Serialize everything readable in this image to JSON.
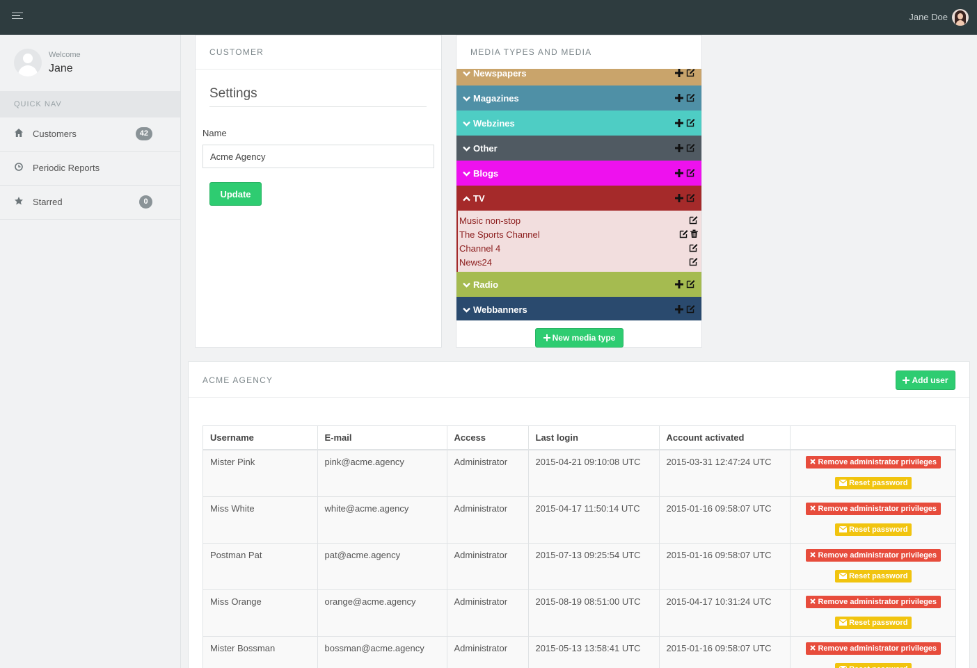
{
  "header": {
    "user_name": "Jane Doe"
  },
  "sidebar": {
    "welcome_label": "Welcome",
    "welcome_name": "Jane",
    "section_label": "QUICK NAV",
    "items": [
      {
        "label": "Customers",
        "badge": "42",
        "icon": "home-icon"
      },
      {
        "label": "Periodic Reports",
        "badge": "",
        "icon": "clock-icon"
      },
      {
        "label": "Starred",
        "badge": "0",
        "icon": "star-icon"
      }
    ]
  },
  "customer_panel": {
    "title": "CUSTOMER",
    "settings_heading": "Settings",
    "name_label": "Name",
    "name_value": "Acme Agency",
    "update_label": "Update"
  },
  "media_panel": {
    "title": "MEDIA TYPES AND MEDIA",
    "types": [
      {
        "label": "Newspapers",
        "color": "#c9a46b",
        "expanded": false
      },
      {
        "label": "Magazines",
        "color": "#4f90a6",
        "expanded": false
      },
      {
        "label": "Webzines",
        "color": "#4ecdc4",
        "expanded": false
      },
      {
        "label": "Other",
        "color": "#505a62",
        "expanded": false
      },
      {
        "label": "Blogs",
        "color": "#ee11ee",
        "expanded": false
      },
      {
        "label": "TV",
        "color": "#a52a2a",
        "expanded": true
      },
      {
        "label": "Radio",
        "color": "#a5bb50",
        "expanded": false
      },
      {
        "label": "Webbanners",
        "color": "#2a4a6e",
        "expanded": false
      }
    ],
    "tv_media": [
      {
        "label": "Music non-stop",
        "deletable": false
      },
      {
        "label": "The Sports Channel",
        "deletable": true
      },
      {
        "label": "Channel 4",
        "deletable": false
      },
      {
        "label": "News24",
        "deletable": false
      }
    ],
    "new_media_type_label": "New media type"
  },
  "users_panel": {
    "title": "ACME AGENCY",
    "add_user_label": "Add user",
    "columns": [
      "Username",
      "E-mail",
      "Access",
      "Last login",
      "Account activated"
    ],
    "rows": [
      {
        "username": "Mister Pink",
        "email": "pink@acme.agency",
        "access": "Administrator",
        "last_login": "2015-04-21 09:10:08 UTC",
        "activated": "2015-03-31 12:47:24 UTC"
      },
      {
        "username": "Miss White",
        "email": "white@acme.agency",
        "access": "Administrator",
        "last_login": "2015-04-17 11:50:14 UTC",
        "activated": "2015-01-16 09:58:07 UTC"
      },
      {
        "username": "Postman Pat",
        "email": "pat@acme.agency",
        "access": "Administrator",
        "last_login": "2015-07-13 09:25:54 UTC",
        "activated": "2015-01-16 09:58:07 UTC"
      },
      {
        "username": "Miss Orange",
        "email": "orange@acme.agency",
        "access": "Administrator",
        "last_login": "2015-08-19 08:51:00 UTC",
        "activated": "2015-04-17 10:31:24 UTC"
      },
      {
        "username": "Mister Bossman",
        "email": "bossman@acme.agency",
        "access": "Administrator",
        "last_login": "2015-05-13 13:58:41 UTC",
        "activated": "2015-01-16 09:58:07 UTC"
      }
    ],
    "remove_admin_label": "Remove administrator privileges",
    "reset_password_label": "Reset password"
  }
}
